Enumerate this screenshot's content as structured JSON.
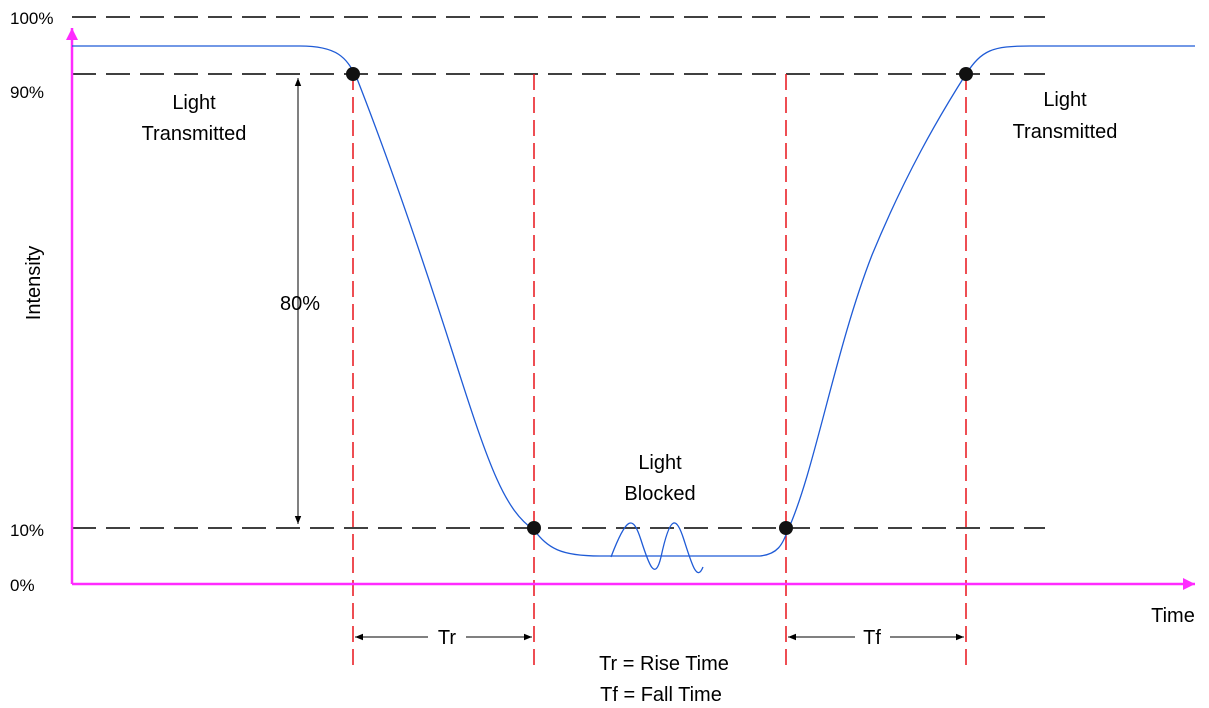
{
  "axes": {
    "y_label": "Intensity",
    "x_label": "Time",
    "y_ticks": [
      "100%",
      "90%",
      "10%",
      "0%"
    ]
  },
  "labels": {
    "left_state_line1": "Light",
    "left_state_line2": "Transmitted",
    "right_state_line1": "Light",
    "right_state_line2": "Transmitted",
    "middle_state_line1": "Light",
    "middle_state_line2": "Blocked",
    "span": "80%",
    "tr": "Tr",
    "tf": "Tf",
    "legend_line1": "Tr = Rise Time",
    "legend_line2": "Tf = Fall Time"
  },
  "colors": {
    "axis": "#ff2bff",
    "curve": "#1f5bd6",
    "marker_line": "#e8141a",
    "reference_line": "#000000",
    "point": "#111111"
  }
}
